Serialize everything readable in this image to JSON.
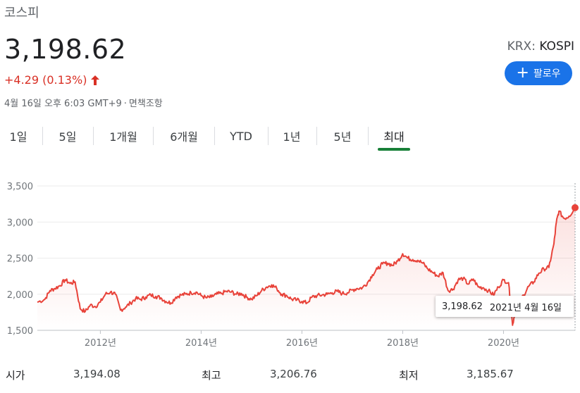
{
  "header": {
    "title": "코스피",
    "price": "3,198.62",
    "change": "+4.29 (0.13%)",
    "timestamp": "4월 16일 오후 6:03 GMT+9",
    "disclaimer": "면책조항",
    "exchange_prefix": "KRX:",
    "exchange_symbol": "KOSPI",
    "follow_label": "팔로우"
  },
  "tabs": [
    "1일",
    "5일",
    "1개월",
    "6개월",
    "YTD",
    "1년",
    "5년",
    "최대"
  ],
  "active_tab": "최대",
  "colors": {
    "line": "#e8433a",
    "accent": "#1a73e8",
    "active_tab": "#188038",
    "down": "#d93025"
  },
  "tooltip": {
    "value": "3,198.62",
    "date": "2021년 4월 16일"
  },
  "stats": [
    {
      "label": "시가",
      "value": "3,194.08"
    },
    {
      "label": "최고",
      "value": "3,206.76"
    },
    {
      "label": "최저",
      "value": "3,185.67"
    }
  ],
  "chart_data": {
    "type": "area",
    "ylim": [
      1500,
      3500
    ],
    "y_ticks": [
      "1,500",
      "2,000",
      "2,500",
      "3,000",
      "3,500"
    ],
    "x_ticks": [
      "2012년",
      "2014년",
      "2016년",
      "2018년",
      "2020년"
    ],
    "x_tick_years": [
      2012,
      2014,
      2016,
      2018,
      2020
    ],
    "xlim": [
      2010.75,
      2021.42
    ],
    "series": [
      {
        "x": [
          2010.75,
          2010.9,
          2011.0,
          2011.1,
          2011.2,
          2011.3,
          2011.4,
          2011.5,
          2011.6,
          2011.7,
          2011.8,
          2011.9,
          2012.0,
          2012.1,
          2012.2,
          2012.3,
          2012.4,
          2012.5,
          2012.6,
          2012.7,
          2012.8,
          2012.9,
          2013.0,
          2013.1,
          2013.2,
          2013.3,
          2013.4,
          2013.5,
          2013.6,
          2013.7,
          2013.8,
          2013.9,
          2014.0,
          2014.1,
          2014.2,
          2014.3,
          2014.4,
          2014.5,
          2014.6,
          2014.7,
          2014.8,
          2014.9,
          2015.0,
          2015.1,
          2015.2,
          2015.3,
          2015.4,
          2015.5,
          2015.6,
          2015.7,
          2015.8,
          2015.9,
          2016.0,
          2016.1,
          2016.2,
          2016.3,
          2016.4,
          2016.5,
          2016.6,
          2016.7,
          2016.8,
          2016.9,
          2017.0,
          2017.1,
          2017.2,
          2017.3,
          2017.4,
          2017.5,
          2017.6,
          2017.7,
          2017.8,
          2017.9,
          2018.0,
          2018.1,
          2018.2,
          2018.3,
          2018.4,
          2018.5,
          2018.6,
          2018.7,
          2018.8,
          2018.9,
          2019.0,
          2019.1,
          2019.2,
          2019.3,
          2019.4,
          2019.5,
          2019.6,
          2019.7,
          2019.8,
          2019.9,
          2020.0,
          2020.1,
          2020.18,
          2020.22,
          2020.3,
          2020.4,
          2020.5,
          2020.6,
          2020.7,
          2020.8,
          2020.9,
          2021.0,
          2021.05,
          2021.1,
          2021.2,
          2021.3,
          2021.42
        ],
        "y": [
          1890,
          1930,
          2050,
          2080,
          2120,
          2200,
          2150,
          2170,
          1800,
          1760,
          1850,
          1830,
          1890,
          2000,
          2030,
          2000,
          1780,
          1820,
          1880,
          1940,
          1930,
          1960,
          1990,
          1970,
          1950,
          1900,
          1880,
          1960,
          1990,
          2000,
          2020,
          2030,
          1980,
          1950,
          1960,
          2000,
          2010,
          2040,
          2030,
          2000,
          2010,
          1960,
          1930,
          1980,
          2050,
          2100,
          2130,
          2080,
          2000,
          1980,
          1930,
          1920,
          1900,
          1880,
          1960,
          1980,
          1990,
          2000,
          2020,
          2040,
          2010,
          2020,
          2060,
          2080,
          2090,
          2160,
          2270,
          2350,
          2420,
          2430,
          2400,
          2460,
          2560,
          2500,
          2480,
          2470,
          2430,
          2350,
          2300,
          2250,
          2300,
          2050,
          2070,
          2200,
          2220,
          2140,
          2210,
          2100,
          2090,
          2050,
          1990,
          2100,
          2200,
          2160,
          1570,
          1730,
          1900,
          1990,
          2110,
          2170,
          2290,
          2350,
          2370,
          2700,
          3000,
          3150,
          3050,
          3080,
          3198.62
        ]
      }
    ]
  }
}
